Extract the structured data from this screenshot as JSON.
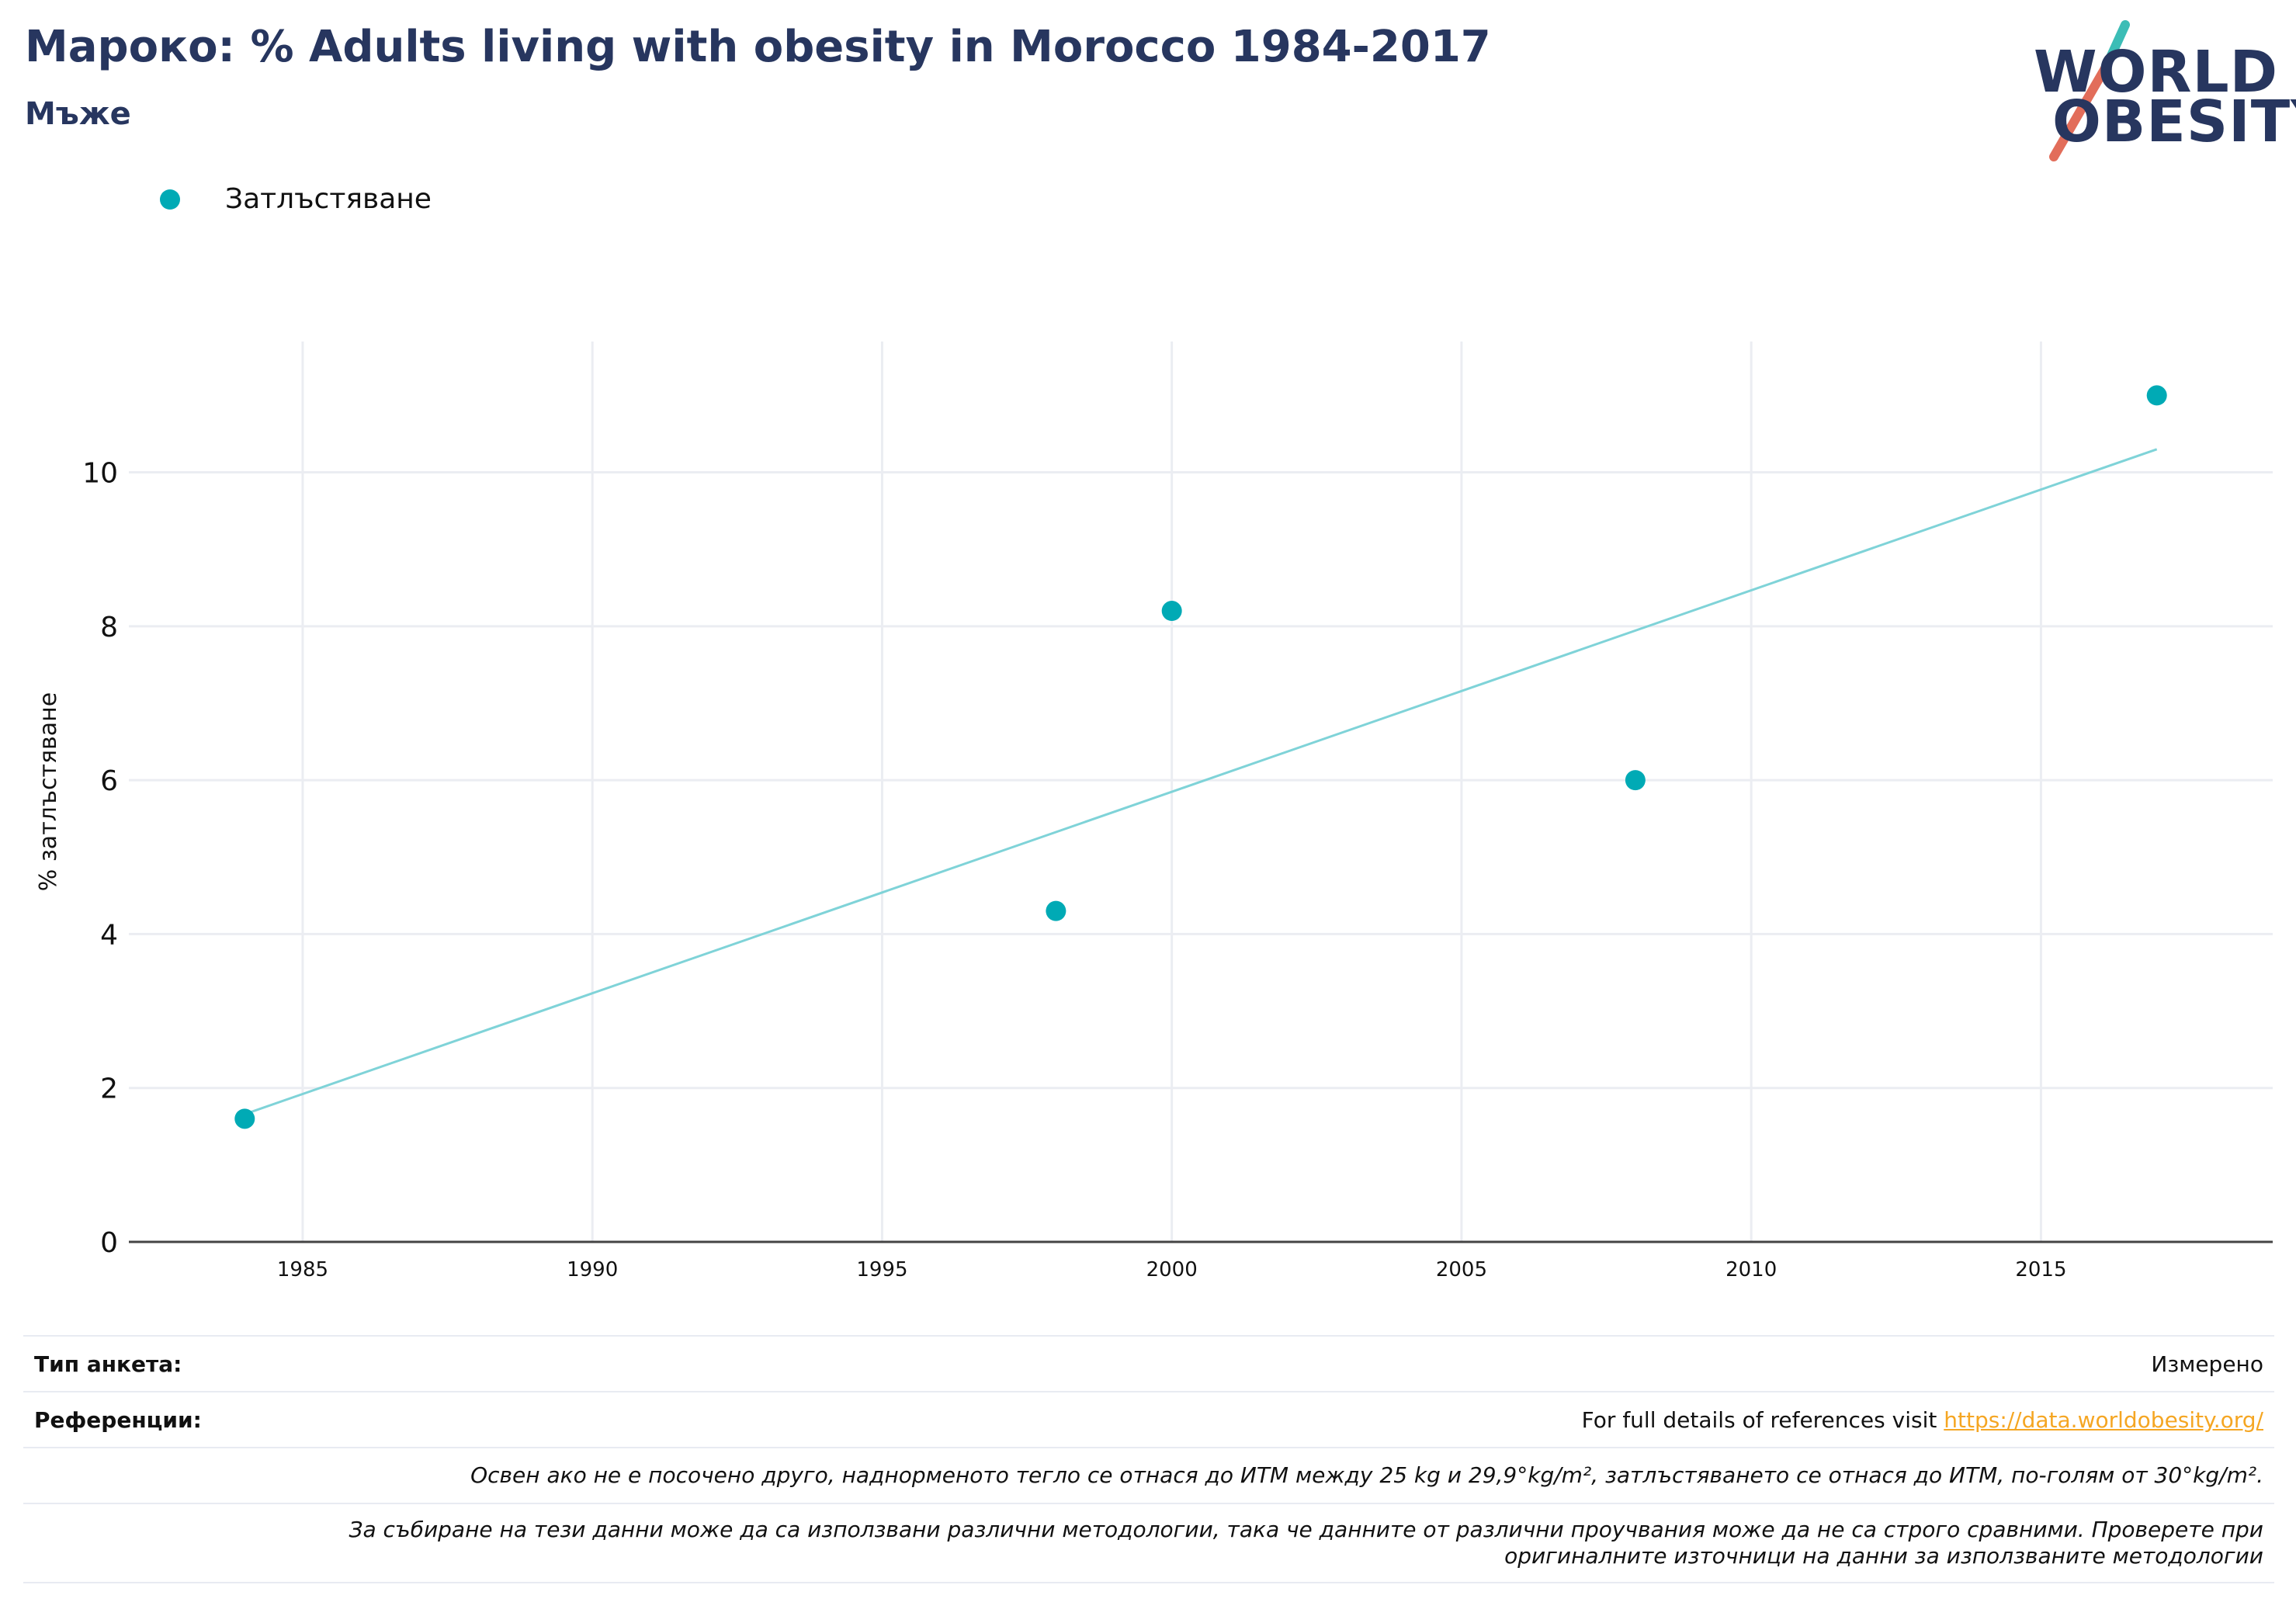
{
  "header": {
    "title": "Мароко: % Adults living with obesity in Morocco 1984-2017",
    "subtitle": "Мъже"
  },
  "logo": {
    "line1": "WORLD",
    "line2": "OBESITY",
    "slash_colors": [
      "#3cbdb6",
      "#e26d5a"
    ]
  },
  "legend": {
    "items": [
      {
        "label": "Затлъстяване",
        "color": "#00aab5"
      }
    ]
  },
  "chart_data": {
    "type": "scatter",
    "ylabel": "% затлъстяване",
    "xlabel": "",
    "xlim": [
      1982,
      2019
    ],
    "ylim": [
      0,
      11.7
    ],
    "x_ticks": [
      1985,
      1990,
      1995,
      2000,
      2005,
      2010,
      2015
    ],
    "y_ticks": [
      0,
      2,
      4,
      6,
      8,
      10
    ],
    "grid": true,
    "legend_position": "top-left",
    "series": [
      {
        "name": "Затлъстяване",
        "color": "#00aab5",
        "points": [
          {
            "x": 1984,
            "y": 1.6
          },
          {
            "x": 1998,
            "y": 4.3
          },
          {
            "x": 2000,
            "y": 8.2
          },
          {
            "x": 2008,
            "y": 6.0
          },
          {
            "x": 2017,
            "y": 11.0
          }
        ]
      }
    ],
    "trendline": {
      "color": "#7fd3d8",
      "points": [
        {
          "x": 1984,
          "y": 1.66
        },
        {
          "x": 2017,
          "y": 10.3
        }
      ]
    }
  },
  "footer": {
    "survey_type_label": "Тип анкета:",
    "survey_type_value": "Измерено",
    "references_label": "Референции:",
    "references_text": "For full details of references visit ",
    "references_link": "https://data.worldobesity.org/",
    "note1": "Освен ако не е посочено друго, наднорменото тегло се отнася до ИТМ между 25 kg и 29,9°kg/m², затлъстяването се отнася до ИТМ, по-голям от 30°kg/m².",
    "note2_line1": "За събиране на тези данни може да са използвани различни методологии, така че данните от различни проучвания може да не са строго сравними. Проверете при",
    "note2_line2": "оригиналните източници на данни за използваните методологии"
  }
}
